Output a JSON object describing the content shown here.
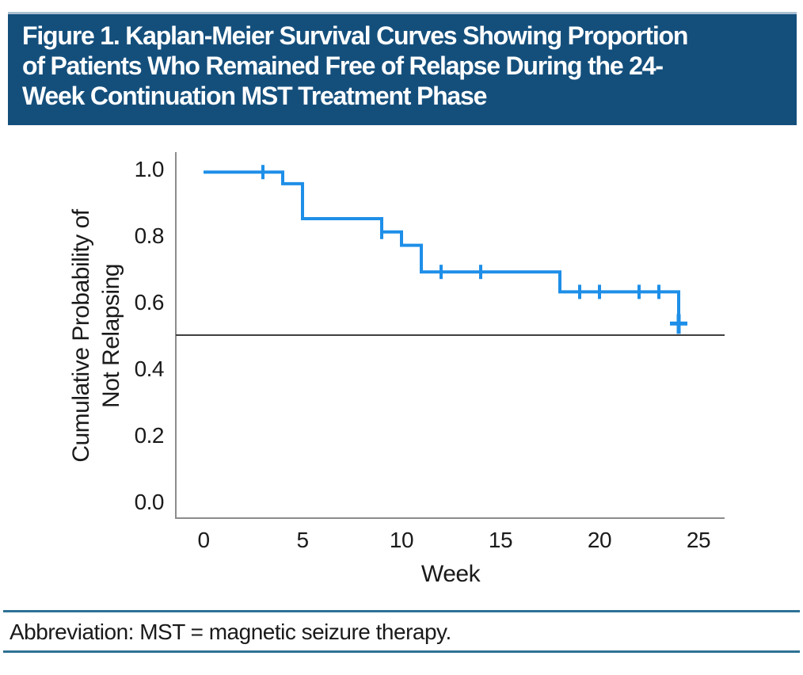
{
  "header": {
    "title_lines": [
      "Figure 1. Kaplan-Meier Survival Curves Showing Proportion",
      "of Patients Who Remained Free of Relapse During the 24-",
      "Week Continuation MST Treatment Phase"
    ]
  },
  "figure": {
    "y_axis_label_line1": "Cumulative Probability of",
    "y_axis_label_line2": "Not Relapsing",
    "x_axis_label": "Week"
  },
  "footer": {
    "abbreviation": "Abbreviation: MST = magnetic seizure therapy."
  },
  "colors": {
    "banner_background": "#144F7C",
    "banner_top_border": "#A9BFD1",
    "curve_blue": "#1E8FE8",
    "axis_gray": "#8C8C8C",
    "reference_line": "#3F3F3F",
    "footer_rule": "#2E7194",
    "text": "#1A1A1A"
  },
  "chart_data": {
    "type": "line",
    "subtype": "kaplan_meier_step",
    "title": "Kaplan-Meier survival: proportion of patients free of relapse during 24-week continuation MST",
    "xlabel": "Week",
    "ylabel": "Cumulative Probability of Not Relapsing",
    "x_ticks": [
      "0",
      "5",
      "10",
      "15",
      "20",
      "25"
    ],
    "y_ticks": [
      "0.0",
      "0.2",
      "0.4",
      "0.6",
      "0.8",
      "1.0"
    ],
    "xlim": [
      0,
      26.3
    ],
    "ylim": [
      -0.05,
      1.05
    ],
    "grid": false,
    "legend": false,
    "reference_line_y": 0.5,
    "series": [
      {
        "name": "Patients remaining free of relapse",
        "color": "#1E8FE8",
        "steps": [
          [
            0,
            0.99
          ],
          [
            4,
            0.955
          ],
          [
            5,
            0.85
          ],
          [
            9,
            0.81
          ],
          [
            10,
            0.77
          ],
          [
            11,
            0.69
          ],
          [
            18,
            0.63
          ],
          [
            24,
            0.53
          ]
        ],
        "censor_marks": [
          [
            3,
            0.99
          ],
          [
            9,
            0.81
          ],
          [
            12,
            0.69
          ],
          [
            14,
            0.69
          ],
          [
            19,
            0.63
          ],
          [
            20,
            0.63
          ],
          [
            22,
            0.63
          ],
          [
            23,
            0.63
          ]
        ],
        "terminal_censor": [
          24,
          0.53
        ]
      }
    ]
  }
}
